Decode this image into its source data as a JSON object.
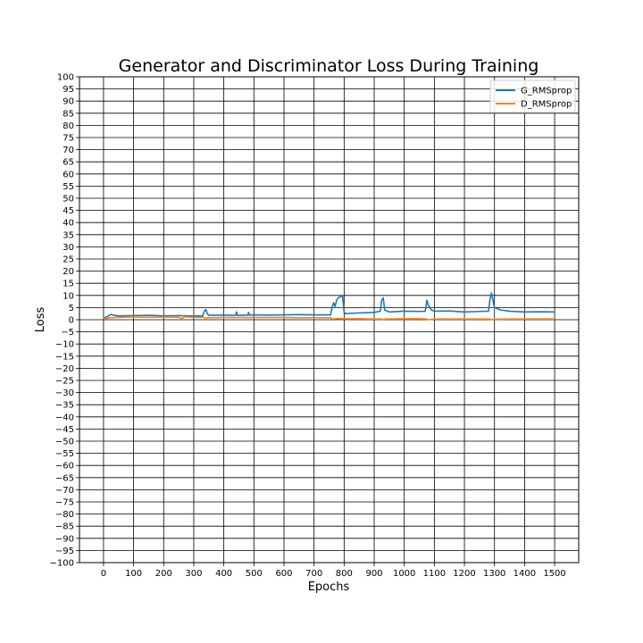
{
  "chart_data": {
    "type": "line",
    "title": "Generator and Discriminator Loss During Training",
    "xlabel": "Epochs",
    "ylabel": "Loss",
    "xlim": [
      -80,
      1580
    ],
    "ylim": [
      -100,
      100
    ],
    "xticks": [
      0,
      100,
      200,
      300,
      400,
      500,
      600,
      700,
      800,
      900,
      1000,
      1100,
      1200,
      1300,
      1400,
      1500
    ],
    "xtick_labels": [
      "0",
      "100",
      "200",
      "300",
      "400",
      "500",
      "600",
      "700",
      "800",
      "900",
      "1000",
      "1100",
      "1200",
      "1300",
      "1400",
      "1500"
    ],
    "yticks": [
      100,
      95,
      90,
      85,
      80,
      75,
      70,
      65,
      60,
      55,
      50,
      45,
      40,
      35,
      30,
      25,
      20,
      15,
      10,
      5,
      0,
      -5,
      -10,
      -15,
      -20,
      -25,
      -30,
      -35,
      -40,
      -45,
      -50,
      -55,
      -60,
      -65,
      -70,
      -75,
      -80,
      -85,
      -90,
      -95,
      -100
    ],
    "ytick_labels": [
      "100",
      "95",
      "90",
      "85",
      "80",
      "75",
      "70",
      "65",
      "60",
      "55",
      "50",
      "45",
      "40",
      "35",
      "30",
      "25",
      "20",
      "15",
      "10",
      "5",
      "0",
      "−5",
      "−10",
      "−15",
      "−20",
      "−25",
      "−30",
      "−35",
      "−40",
      "−45",
      "−50",
      "−55",
      "−60",
      "−65",
      "−70",
      "−75",
      "−80",
      "−85",
      "−90",
      "−95",
      "−100"
    ],
    "grid": true,
    "legend_position": "top-right",
    "series": [
      {
        "name": "G_RMSprop",
        "color": "#1f77b4",
        "x": [
          0,
          15,
          25,
          35,
          50,
          100,
          150,
          200,
          250,
          300,
          330,
          335,
          340,
          345,
          350,
          400,
          440,
          442,
          445,
          480,
          482,
          485,
          500,
          550,
          600,
          650,
          700,
          755,
          760,
          765,
          770,
          775,
          780,
          790,
          795,
          800,
          805,
          850,
          900,
          920,
          925,
          930,
          935,
          950,
          1000,
          1050,
          1070,
          1075,
          1080,
          1090,
          1100,
          1150,
          1200,
          1250,
          1280,
          1285,
          1290,
          1300,
          1320,
          1350,
          1400,
          1450,
          1500
        ],
        "y": [
          0.5,
          1.5,
          2.2,
          1.8,
          1.6,
          1.7,
          1.8,
          1.6,
          1.7,
          1.5,
          1.6,
          3.5,
          4.2,
          2.5,
          1.8,
          1.9,
          1.8,
          3.2,
          1.8,
          1.9,
          3.0,
          1.9,
          2.0,
          1.9,
          2.0,
          2.1,
          2.0,
          2.0,
          5.0,
          7.0,
          5.5,
          8.0,
          9.0,
          9.5,
          9.8,
          3.0,
          2.5,
          2.8,
          3.0,
          3.5,
          8.0,
          9.0,
          4.0,
          3.2,
          3.5,
          3.4,
          3.5,
          8.0,
          6.0,
          4.0,
          3.5,
          3.6,
          3.2,
          3.4,
          3.5,
          8.5,
          11.0,
          5.0,
          4.0,
          3.5,
          3.2,
          3.3,
          3.2
        ]
      },
      {
        "name": "D_RMSprop",
        "color": "#ff7f0e",
        "x": [
          0,
          20,
          50,
          100,
          150,
          200,
          250,
          260,
          270,
          300,
          335,
          340,
          345,
          400,
          450,
          500,
          550,
          600,
          650,
          700,
          755,
          760,
          780,
          800,
          850,
          900,
          925,
          930,
          935,
          1000,
          1050,
          1075,
          1080,
          1100,
          1150,
          1200,
          1250,
          1285,
          1290,
          1300,
          1350,
          1400,
          1450,
          1500
        ],
        "y": [
          0.3,
          0.8,
          1.0,
          1.1,
          1.0,
          1.1,
          1.0,
          0.5,
          1.2,
          1.0,
          1.0,
          0.0,
          0.8,
          0.9,
          0.9,
          0.9,
          0.9,
          0.9,
          0.8,
          0.8,
          0.8,
          0.3,
          0.5,
          0.4,
          0.4,
          0.3,
          0.3,
          0.0,
          0.3,
          0.4,
          0.4,
          0.3,
          0.0,
          0.3,
          0.3,
          0.3,
          0.3,
          0.3,
          0.0,
          0.2,
          0.3,
          0.3,
          0.3,
          0.3
        ]
      }
    ]
  }
}
